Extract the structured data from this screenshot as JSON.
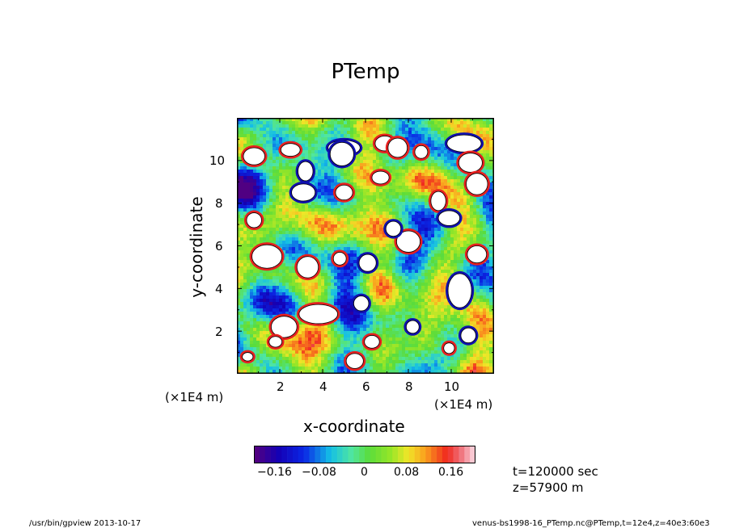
{
  "chart_data": {
    "type": "heatmap",
    "title": "PTemp",
    "xlabel": "x-coordinate",
    "ylabel": "y-coordinate",
    "x_scale_label": "(×1E4 m)",
    "y_scale_label": "(×1E4 m)",
    "xlim": [
      0,
      12
    ],
    "ylim": [
      0,
      12
    ],
    "x_ticks": [
      "2",
      "4",
      "6",
      "8",
      "10"
    ],
    "y_ticks": [
      "2",
      "4",
      "6",
      "8",
      "10"
    ],
    "colorbar": {
      "range": [
        -0.2,
        0.2
      ],
      "step": 0.01,
      "ticks": [
        "−0.16",
        "−0.08",
        "0",
        "0.08",
        "0.16"
      ],
      "tick_values": [
        -0.16,
        -0.08,
        0,
        0.08,
        0.16
      ]
    },
    "blobs": [
      [
        5.0,
        10.6,
        0.75,
        0.35
      ],
      [
        2.5,
        10.5,
        0.45,
        0.3
      ],
      [
        0.8,
        10.2,
        0.5,
        0.4
      ],
      [
        4.9,
        10.3,
        0.55,
        0.55
      ],
      [
        6.9,
        10.8,
        0.45,
        0.35
      ],
      [
        7.5,
        10.6,
        0.45,
        0.45
      ],
      [
        10.6,
        10.8,
        0.8,
        0.4
      ],
      [
        10.9,
        9.9,
        0.55,
        0.45
      ],
      [
        8.6,
        10.4,
        0.3,
        0.3
      ],
      [
        3.2,
        9.5,
        0.35,
        0.45
      ],
      [
        6.7,
        9.2,
        0.4,
        0.3
      ],
      [
        11.2,
        8.9,
        0.5,
        0.5
      ],
      [
        3.1,
        8.5,
        0.55,
        0.4
      ],
      [
        5.0,
        8.5,
        0.4,
        0.35
      ],
      [
        9.4,
        8.1,
        0.35,
        0.45
      ],
      [
        9.9,
        7.3,
        0.5,
        0.35
      ],
      [
        0.8,
        7.2,
        0.35,
        0.35
      ],
      [
        8.0,
        6.2,
        0.55,
        0.5
      ],
      [
        7.3,
        6.8,
        0.35,
        0.35
      ],
      [
        1.4,
        5.5,
        0.7,
        0.55
      ],
      [
        3.3,
        5.0,
        0.5,
        0.5
      ],
      [
        6.1,
        5.2,
        0.4,
        0.4
      ],
      [
        4.8,
        5.4,
        0.3,
        0.3
      ],
      [
        11.2,
        5.6,
        0.45,
        0.4
      ],
      [
        10.4,
        3.9,
        0.55,
        0.8
      ],
      [
        2.2,
        2.2,
        0.6,
        0.5
      ],
      [
        3.8,
        2.8,
        0.9,
        0.45
      ],
      [
        5.8,
        3.3,
        0.35,
        0.35
      ],
      [
        6.3,
        1.5,
        0.35,
        0.3
      ],
      [
        9.9,
        1.2,
        0.25,
        0.25
      ],
      [
        10.8,
        1.8,
        0.35,
        0.35
      ],
      [
        5.5,
        0.6,
        0.4,
        0.35
      ],
      [
        0.5,
        0.8,
        0.25,
        0.2
      ],
      [
        8.2,
        2.2,
        0.3,
        0.3
      ],
      [
        1.8,
        1.5,
        0.3,
        0.25
      ]
    ]
  },
  "annotations": {
    "time": "t=120000 sec",
    "height": "z=57900 m"
  },
  "footer": {
    "left": "/usr/bin/gpview   2013-10-17",
    "right": "venus-bs1998-16_PTemp.nc@PTemp,t=12e4,z=40e3:60e3"
  }
}
